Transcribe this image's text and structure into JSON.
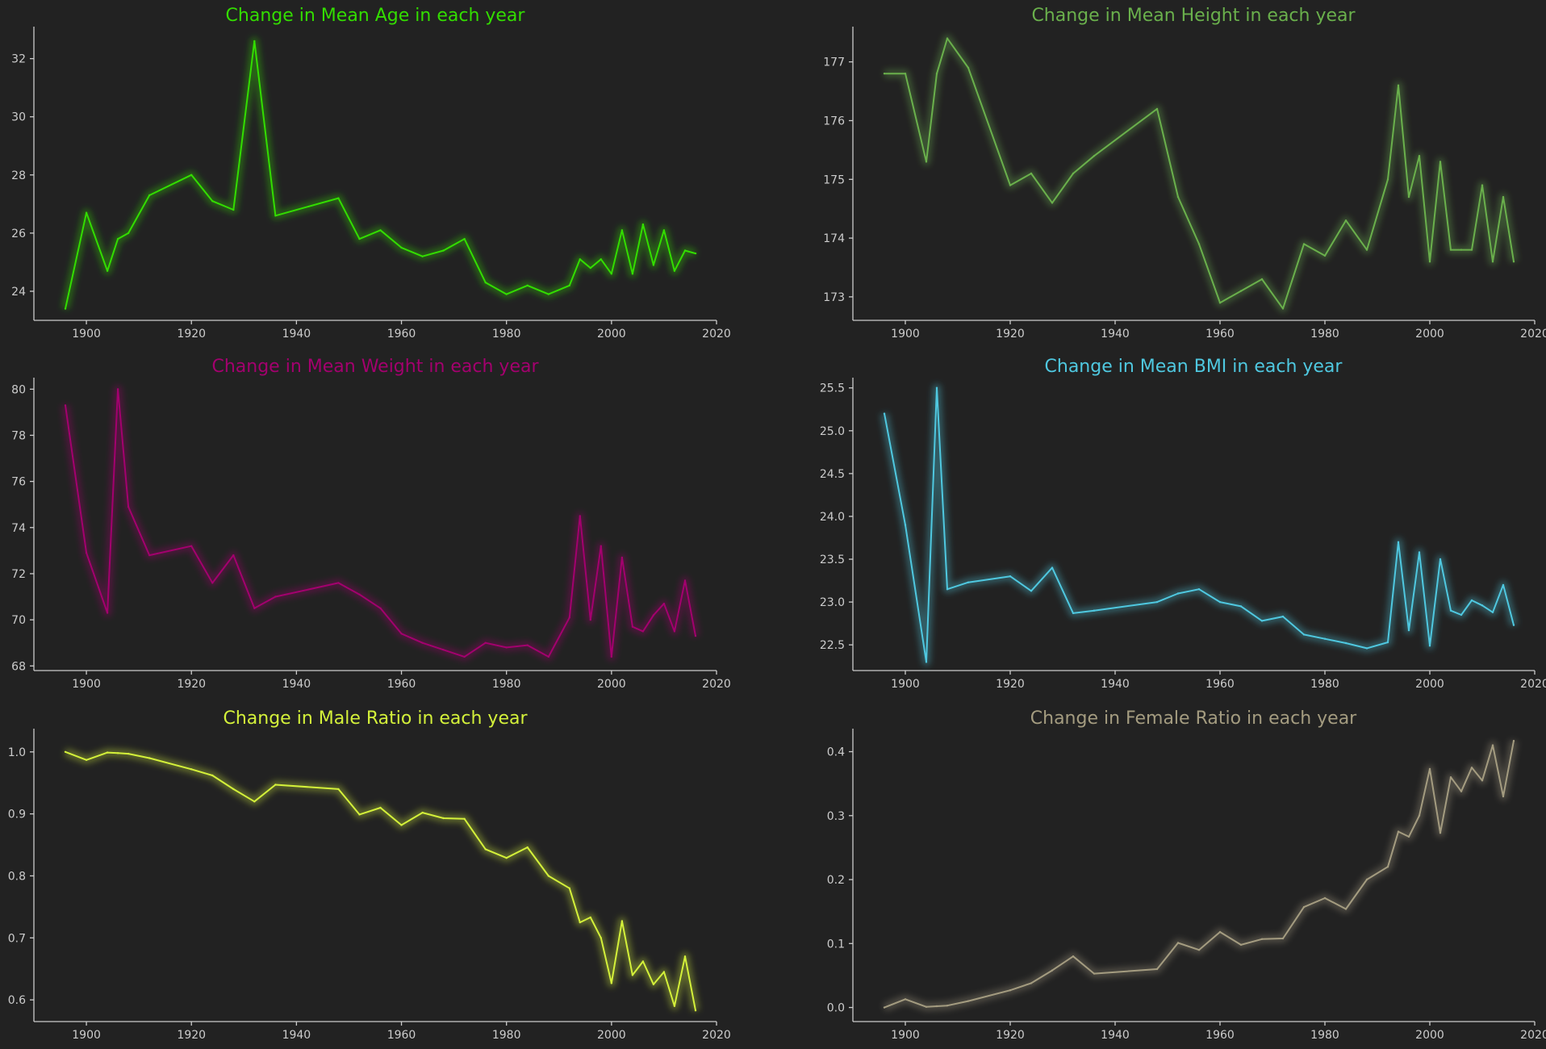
{
  "chart_data": [
    {
      "type": "line",
      "title": "Change in Mean Age in each year",
      "color": "#33dd00",
      "xlim": [
        1890,
        2020
      ],
      "ylim": [
        23.0,
        33.1
      ],
      "xticks": [
        1900,
        1920,
        1940,
        1960,
        1980,
        2000,
        2020
      ],
      "yticks": [
        24,
        26,
        28,
        30,
        32
      ],
      "ytick_labels": [
        "24",
        "26",
        "28",
        "30",
        "32"
      ],
      "x": [
        1896,
        1900,
        1904,
        1906,
        1908,
        1912,
        1920,
        1924,
        1928,
        1932,
        1936,
        1948,
        1952,
        1956,
        1960,
        1964,
        1968,
        1972,
        1976,
        1980,
        1984,
        1988,
        1992,
        1994,
        1996,
        1998,
        2000,
        2002,
        2004,
        2006,
        2008,
        2010,
        2012,
        2014,
        2016
      ],
      "y": [
        23.4,
        26.7,
        24.7,
        25.8,
        26.0,
        27.3,
        28.0,
        27.1,
        26.8,
        32.6,
        26.6,
        27.2,
        25.8,
        26.1,
        25.5,
        25.2,
        25.4,
        25.8,
        24.3,
        23.9,
        24.2,
        23.9,
        24.2,
        25.1,
        24.8,
        25.1,
        24.6,
        26.1,
        24.6,
        26.3,
        24.9,
        26.1,
        24.7,
        25.4,
        25.3
      ]
    },
    {
      "type": "line",
      "title": "Change in Mean Height in each year",
      "color": "#6ab04c",
      "xlim": [
        1890,
        2020
      ],
      "ylim": [
        172.6,
        177.6
      ],
      "xticks": [
        1900,
        1920,
        1940,
        1960,
        1980,
        2000,
        2020
      ],
      "yticks": [
        173,
        174,
        175,
        176,
        177
      ],
      "ytick_labels": [
        "173",
        "174",
        "175",
        "176",
        "177"
      ],
      "x": [
        1896,
        1900,
        1904,
        1906,
        1908,
        1912,
        1920,
        1924,
        1928,
        1932,
        1936,
        1948,
        1952,
        1956,
        1960,
        1964,
        1968,
        1972,
        1976,
        1980,
        1984,
        1988,
        1992,
        1994,
        1996,
        1998,
        2000,
        2002,
        2004,
        2006,
        2008,
        2010,
        2012,
        2014,
        2016
      ],
      "y": [
        176.8,
        176.8,
        175.3,
        176.8,
        177.4,
        176.9,
        174.9,
        175.1,
        174.6,
        175.1,
        175.4,
        176.2,
        174.7,
        173.9,
        172.9,
        173.1,
        173.3,
        172.8,
        173.9,
        173.7,
        174.3,
        173.8,
        175.0,
        176.6,
        174.7,
        175.4,
        173.6,
        175.3,
        173.8,
        173.8,
        173.8,
        174.9,
        173.6,
        174.7,
        173.6
      ]
    },
    {
      "type": "line",
      "title": "Change in Mean Weight in each year",
      "color": "#a3006e",
      "xlim": [
        1890,
        2020
      ],
      "ylim": [
        67.8,
        80.5
      ],
      "xticks": [
        1900,
        1920,
        1940,
        1960,
        1980,
        2000,
        2020
      ],
      "yticks": [
        68,
        70,
        72,
        74,
        76,
        78,
        80
      ],
      "ytick_labels": [
        "68",
        "70",
        "72",
        "74",
        "76",
        "78",
        "80"
      ],
      "x": [
        1896,
        1900,
        1904,
        1906,
        1908,
        1912,
        1920,
        1924,
        1928,
        1932,
        1936,
        1948,
        1952,
        1956,
        1960,
        1964,
        1968,
        1972,
        1976,
        1980,
        1984,
        1988,
        1992,
        1994,
        1996,
        1998,
        2000,
        2002,
        2004,
        2006,
        2008,
        2010,
        2012,
        2014,
        2016
      ],
      "y": [
        79.3,
        72.9,
        70.3,
        80.0,
        74.9,
        72.8,
        73.2,
        71.6,
        72.8,
        70.5,
        71.0,
        71.6,
        71.1,
        70.5,
        69.4,
        69.0,
        68.7,
        68.4,
        69.0,
        68.8,
        68.9,
        68.4,
        70.1,
        74.5,
        70.0,
        73.2,
        68.4,
        72.7,
        69.7,
        69.5,
        70.2,
        70.7,
        69.5,
        71.7,
        69.3
      ]
    },
    {
      "type": "line",
      "title": "Change in Mean BMI in each year",
      "color": "#4fc8e0",
      "xlim": [
        1890,
        2020
      ],
      "ylim": [
        22.2,
        25.62
      ],
      "xticks": [
        1900,
        1920,
        1940,
        1960,
        1980,
        2000,
        2020
      ],
      "yticks": [
        22.5,
        23.0,
        23.5,
        24.0,
        24.5,
        25.0,
        25.5
      ],
      "ytick_labels": [
        "22.5",
        "23.0",
        "23.5",
        "24.0",
        "24.5",
        "25.0",
        "25.5"
      ],
      "x": [
        1896,
        1900,
        1904,
        1906,
        1908,
        1912,
        1920,
        1924,
        1928,
        1932,
        1936,
        1948,
        1952,
        1956,
        1960,
        1964,
        1968,
        1972,
        1976,
        1980,
        1984,
        1988,
        1992,
        1994,
        1996,
        1998,
        2000,
        2002,
        2004,
        2006,
        2008,
        2010,
        2012,
        2014,
        2016
      ],
      "y": [
        25.2,
        23.9,
        22.3,
        25.5,
        23.15,
        23.23,
        23.3,
        23.13,
        23.4,
        22.87,
        22.9,
        23.0,
        23.1,
        23.15,
        23.0,
        22.95,
        22.78,
        22.83,
        22.62,
        22.57,
        22.52,
        22.46,
        22.53,
        23.7,
        22.67,
        23.58,
        22.49,
        23.5,
        22.9,
        22.85,
        23.02,
        22.96,
        22.88,
        23.2,
        22.73
      ]
    },
    {
      "type": "line",
      "title": "Change in Male Ratio in each year",
      "color": "#d4f13a",
      "xlim": [
        1890,
        2020
      ],
      "ylim": [
        0.565,
        1.0375
      ],
      "xticks": [
        1900,
        1920,
        1940,
        1960,
        1980,
        2000,
        2020
      ],
      "yticks": [
        0.6,
        0.7,
        0.8,
        0.9,
        1.0
      ],
      "ytick_labels": [
        "0.6",
        "0.7",
        "0.8",
        "0.9",
        "1.0"
      ],
      "x": [
        1896,
        1900,
        1904,
        1906,
        1908,
        1912,
        1920,
        1924,
        1928,
        1932,
        1936,
        1948,
        1952,
        1956,
        1960,
        1964,
        1968,
        1972,
        1976,
        1980,
        1984,
        1988,
        1992,
        1994,
        1996,
        1998,
        2000,
        2002,
        2004,
        2006,
        2008,
        2010,
        2012,
        2014,
        2016
      ],
      "y": [
        1.0,
        0.987,
        0.999,
        0.998,
        0.997,
        0.99,
        0.972,
        0.962,
        0.94,
        0.92,
        0.947,
        0.94,
        0.899,
        0.91,
        0.882,
        0.902,
        0.893,
        0.892,
        0.843,
        0.829,
        0.846,
        0.8,
        0.78,
        0.725,
        0.733,
        0.7,
        0.627,
        0.727,
        0.64,
        0.662,
        0.625,
        0.645,
        0.59,
        0.67,
        0.583
      ]
    },
    {
      "type": "line",
      "title": "Change in Female Ratio in each year",
      "color": "#a49c80",
      "xlim": [
        1890,
        2020
      ],
      "ylim": [
        -0.022,
        0.436
      ],
      "xticks": [
        1900,
        1920,
        1940,
        1960,
        1980,
        2000,
        2020
      ],
      "yticks": [
        0.0,
        0.1,
        0.2,
        0.3,
        0.4
      ],
      "ytick_labels": [
        "0.0",
        "0.1",
        "0.2",
        "0.3",
        "0.4"
      ],
      "x": [
        1896,
        1900,
        1904,
        1906,
        1908,
        1912,
        1920,
        1924,
        1928,
        1932,
        1936,
        1948,
        1952,
        1956,
        1960,
        1964,
        1968,
        1972,
        1976,
        1980,
        1984,
        1988,
        1992,
        1994,
        1996,
        1998,
        2000,
        2002,
        2004,
        2006,
        2008,
        2010,
        2012,
        2014,
        2016
      ],
      "y": [
        0.0,
        0.013,
        0.001,
        0.002,
        0.003,
        0.01,
        0.027,
        0.038,
        0.058,
        0.08,
        0.053,
        0.06,
        0.101,
        0.09,
        0.118,
        0.098,
        0.107,
        0.108,
        0.157,
        0.171,
        0.154,
        0.2,
        0.22,
        0.275,
        0.267,
        0.3,
        0.373,
        0.273,
        0.36,
        0.338,
        0.375,
        0.355,
        0.41,
        0.33,
        0.417
      ]
    }
  ]
}
